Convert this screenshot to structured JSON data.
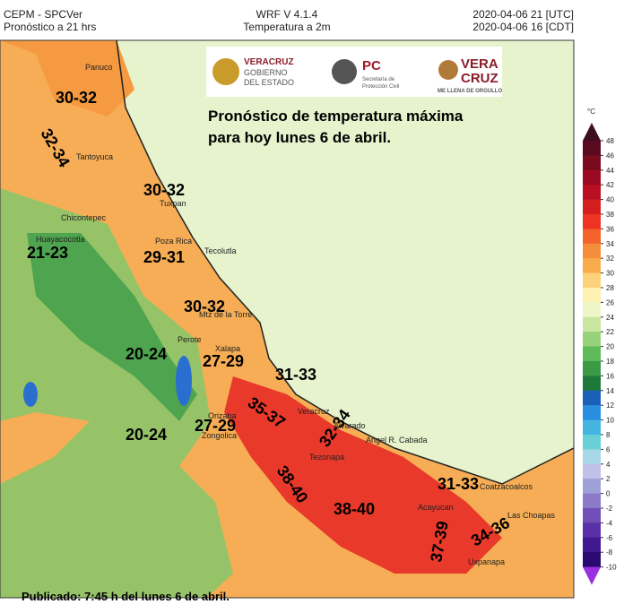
{
  "header": {
    "left": [
      "CEPM - SPCVer",
      "Pronóstico a 21 hrs"
    ],
    "center": [
      "WRF V 4.1.4",
      "Temperatura a 2m"
    ],
    "right": [
      "2020-04-06 21 [UTC]",
      "2020-04-06 16 [CDT]"
    ]
  },
  "logos": {
    "state": [
      "VERACRUZ",
      "GOBIERNO",
      "DEL ESTADO"
    ],
    "pc": [
      "PC",
      "Secretaría de",
      "Protección Civil"
    ],
    "brand": [
      "VERA",
      "CRUZ",
      "ME LLENA DE ORGULLO"
    ]
  },
  "title": [
    "Pronóstico de temperatura máxima",
    "para hoy lunes 6 de abril."
  ],
  "ranges": [
    "30-32",
    "32-34",
    "30-32",
    "21-23",
    "29-31",
    "30-32",
    "20-24",
    "27-29",
    "31-33",
    "35-37",
    "32-34",
    "20-24",
    "27-29",
    "38-40",
    "38-40",
    "31-33",
    "37-39",
    "34-36"
  ],
  "places": [
    "Panuco",
    "Tantoyuca",
    "Chicontepec",
    "Tuxpan",
    "Huayacocotla",
    "Poza Rica",
    "Tecolutla",
    "Mtz de la Torre",
    "Perote",
    "Xalapa",
    "Veracruz",
    "Orizaba",
    "Zongolica",
    "Alvarado",
    "Angel R. Cabada",
    "Tezonapa",
    "Acayucan",
    "Coatzacoalcos",
    "Las Choapas",
    "Uxpanapa"
  ],
  "colorbar": {
    "unit": "°C",
    "ticks": [
      48,
      46,
      44,
      42,
      40,
      38,
      36,
      34,
      32,
      30,
      28,
      26,
      24,
      22,
      20,
      18,
      16,
      14,
      12,
      10,
      8,
      6,
      4,
      2,
      0,
      -2,
      -4,
      -6,
      -8,
      -10
    ],
    "colors": [
      "#3d0f1f",
      "#5a0a1e",
      "#7a0a1e",
      "#9b0a22",
      "#b80f22",
      "#d41e1e",
      "#ee3322",
      "#f4622c",
      "#f58c3a",
      "#f8ab4a",
      "#fdd17a",
      "#fdf0b0",
      "#eef6c8",
      "#c8e6a0",
      "#96d27a",
      "#5fba5a",
      "#3a9a45",
      "#1e7a3a",
      "#1a5fb8",
      "#2a8ee0",
      "#44b4e0",
      "#6ad0d8",
      "#a8d8e8",
      "#c0c0e8",
      "#a0a0d8",
      "#8a7ac8",
      "#7050b8",
      "#5a30a8",
      "#401890",
      "#2a0a70",
      "#9a30e0"
    ]
  },
  "footer": "Publicado: 7:45 h del lunes 6 de abril."
}
